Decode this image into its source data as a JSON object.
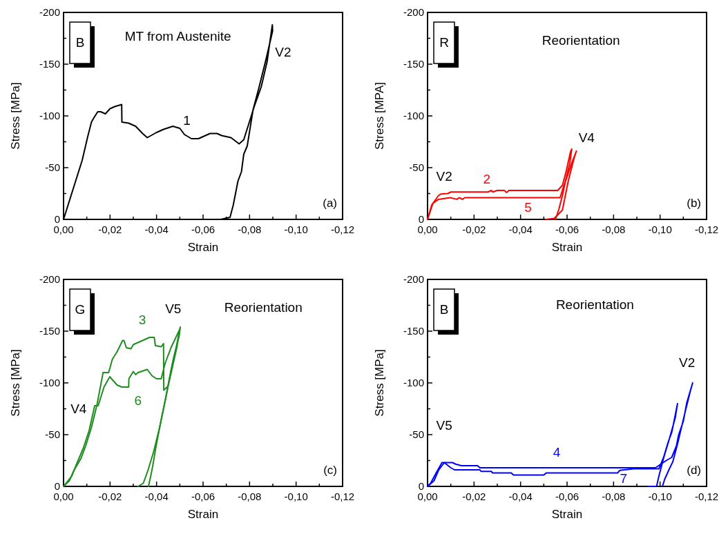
{
  "chart_data": [
    {
      "type": "line",
      "title": "MT from Austenite",
      "subtitle": "B",
      "xlabel": "Strain",
      "ylabel": "Stress [MPa]",
      "xlim": [
        0,
        -0.12
      ],
      "ylim": [
        0,
        -200
      ],
      "xticks": [
        {
          "value": 0,
          "label": "0,00"
        },
        {
          "value": -0.01,
          "label": null
        },
        {
          "value": -0.02,
          "label": "-0,02"
        },
        {
          "value": -0.03,
          "label": null
        },
        {
          "value": -0.04,
          "label": "-0,04"
        },
        {
          "value": -0.05,
          "label": null
        },
        {
          "value": -0.06,
          "label": "-0,06"
        },
        {
          "value": -0.07,
          "label": null
        },
        {
          "value": -0.08,
          "label": "-0,08"
        },
        {
          "value": -0.09,
          "label": null
        },
        {
          "value": -0.1,
          "label": "-0,10"
        },
        {
          "value": -0.11,
          "label": null
        },
        {
          "value": -0.12,
          "label": "-0,12"
        }
      ],
      "yticks": [
        0,
        {
          "value": -25,
          "label": null
        },
        -50,
        {
          "value": -75,
          "label": null
        },
        -100,
        {
          "value": -125,
          "label": null
        },
        -150,
        {
          "value": -175,
          "label": null
        },
        -200
      ],
      "series": [
        {
          "name": "1",
          "color": "#000000",
          "x": [
            0,
            -0.008,
            -0.0104,
            -0.012,
            -0.013,
            -0.0147,
            -0.016,
            -0.018,
            -0.02,
            -0.022,
            -0.025,
            -0.0251,
            -0.028,
            -0.031,
            -0.034,
            -0.036,
            -0.04,
            -0.043,
            -0.047,
            -0.05,
            -0.052,
            -0.055,
            -0.058,
            -0.06,
            -0.063,
            -0.066,
            -0.068,
            -0.072,
            -0.0755,
            -0.0775,
            -0.082,
            -0.085,
            -0.0875,
            -0.0898,
            -0.0899,
            -0.087,
            -0.084,
            -0.0815,
            -0.079,
            -0.0775,
            -0.0765,
            -0.075,
            -0.073,
            -0.0716,
            -0.0676
          ],
          "values": [
            0,
            -57,
            -80,
            -94,
            -98,
            -104,
            -104,
            -102,
            -107,
            -109,
            -111,
            -94,
            -93,
            -90,
            -83,
            -79,
            -84,
            -87,
            -90,
            -88,
            -82,
            -78,
            -78,
            -80,
            -83,
            -83,
            -81,
            -79,
            -73,
            -77,
            -109,
            -128,
            -152,
            -188,
            -182,
            -154,
            -127,
            -106,
            -71,
            -63,
            -46,
            -37,
            -14,
            -2,
            0
          ]
        }
      ],
      "annotations": [
        "V2",
        "(a)"
      ]
    },
    {
      "type": "line",
      "title": "Reorientation",
      "subtitle": "R",
      "xlabel": "Strain",
      "ylabel": "Stress [MPA]",
      "xlim": [
        0,
        -0.12
      ],
      "ylim": [
        0,
        -200
      ],
      "xticks": [
        {
          "value": 0,
          "label": "0,00"
        },
        {
          "value": -0.01,
          "label": null
        },
        {
          "value": -0.02,
          "label": "-0,02"
        },
        {
          "value": -0.03,
          "label": null
        },
        {
          "value": -0.04,
          "label": "-0,04"
        },
        {
          "value": -0.05,
          "label": null
        },
        {
          "value": -0.06,
          "label": "-0,06"
        },
        {
          "value": -0.07,
          "label": null
        },
        {
          "value": -0.08,
          "label": "-0,08"
        },
        {
          "value": -0.09,
          "label": null
        },
        {
          "value": -0.1,
          "label": "-0,10"
        },
        {
          "value": -0.11,
          "label": null
        },
        {
          "value": -0.12,
          "label": "-0,12"
        }
      ],
      "yticks": [
        0,
        {
          "value": -25,
          "label": null
        },
        -50,
        {
          "value": -75,
          "label": null
        },
        -100,
        {
          "value": -125,
          "label": null
        },
        -150,
        {
          "value": -175,
          "label": null
        },
        -200
      ],
      "series": [
        {
          "name": "2",
          "color": "#ff0000",
          "x": [
            0,
            -0.0018,
            -0.0047,
            -0.0057,
            -0.0087,
            -0.01,
            -0.026,
            -0.0275,
            -0.028,
            -0.03,
            -0.033,
            -0.034,
            -0.035,
            -0.056,
            -0.058,
            -0.0595,
            -0.0615,
            -0.062,
            -0.0612,
            -0.0595,
            -0.058,
            -0.0565,
            -0.055
          ],
          "values": [
            0,
            -14,
            -23,
            -24.5,
            -25,
            -26.5,
            -26.5,
            -28,
            -26.5,
            -28,
            -28,
            -26,
            -28,
            -28,
            -33,
            -45.5,
            -65.5,
            -68,
            -54.5,
            -39,
            -23,
            -10,
            0
          ]
        },
        {
          "name": "5",
          "color": "#ff0000",
          "x": [
            0,
            -0.0023,
            -0.0047,
            -0.0067,
            -0.0097,
            -0.0126,
            -0.0136,
            -0.015,
            -0.016,
            -0.057,
            -0.0585,
            -0.06,
            -0.062,
            -0.064,
            -0.063,
            -0.0605,
            -0.058,
            -0.0545,
            -0.051
          ],
          "values": [
            0,
            -15.5,
            -19.4,
            -20,
            -21,
            -19.4,
            -21,
            -19.4,
            -21,
            -21,
            -32,
            -41,
            -54.5,
            -66,
            -59,
            -37,
            -9,
            -1,
            0
          ]
        }
      ],
      "annotations": [
        "V2",
        "V4",
        "(b)"
      ]
    },
    {
      "type": "line",
      "title": "Reorientation",
      "subtitle": "G",
      "xlabel": "Strain",
      "ylabel": "Stress [MPa]",
      "xlim": [
        0,
        -0.12
      ],
      "ylim": [
        0,
        -200
      ],
      "xticks": [
        {
          "value": 0,
          "label": "0,00"
        },
        {
          "value": -0.01,
          "label": null
        },
        {
          "value": -0.02,
          "label": "-0,02"
        },
        {
          "value": -0.03,
          "label": null
        },
        {
          "value": -0.04,
          "label": "-0,04"
        },
        {
          "value": -0.05,
          "label": null
        },
        {
          "value": -0.06,
          "label": "-0,06"
        },
        {
          "value": -0.07,
          "label": null
        },
        {
          "value": -0.08,
          "label": "-0,08"
        },
        {
          "value": -0.09,
          "label": null
        },
        {
          "value": -0.1,
          "label": "-0,10"
        },
        {
          "value": -0.11,
          "label": null
        },
        {
          "value": -0.12,
          "label": "-0,12"
        }
      ],
      "yticks": [
        0,
        {
          "value": -25,
          "label": null
        },
        -50,
        {
          "value": -75,
          "label": null
        },
        -100,
        {
          "value": -125,
          "label": null
        },
        -150,
        {
          "value": -175,
          "label": null
        },
        -200
      ],
      "series": [
        {
          "name": "3",
          "color": "#1e8c1e",
          "x": [
            0,
            -0.0025,
            -0.0045,
            -0.0075,
            -0.0095,
            -0.012,
            -0.0144,
            -0.017,
            -0.0194,
            -0.021,
            -0.023,
            -0.0254,
            -0.026,
            -0.027,
            -0.029,
            -0.03,
            -0.033,
            -0.037,
            -0.039,
            -0.0395,
            -0.042,
            -0.043,
            -0.0431,
            -0.045,
            -0.0467,
            -0.0487,
            -0.0502,
            -0.0497,
            -0.0472,
            -0.0442,
            -0.0413,
            -0.0388,
            -0.0363,
            -0.0343,
            -0.032
          ],
          "values": [
            0,
            -5.5,
            -15.5,
            -27,
            -39,
            -57,
            -79,
            -110,
            -110,
            -123,
            -130,
            -141,
            -141,
            -134,
            -133,
            -137,
            -140,
            -144,
            -144,
            -136,
            -135,
            -138,
            -93,
            -97,
            -114,
            -134,
            -154,
            -145,
            -123,
            -88,
            -57,
            -34,
            -15.5,
            -3,
            0
          ]
        },
        {
          "name": "6",
          "color": "#1e8c1e",
          "x": [
            0,
            -0.0035,
            -0.0055,
            -0.0085,
            -0.011,
            -0.0134,
            -0.0149,
            -0.0174,
            -0.0199,
            -0.021,
            -0.023,
            -0.025,
            -0.028,
            -0.0281,
            -0.03,
            -0.031,
            -0.032,
            -0.036,
            -0.038,
            -0.04,
            -0.042,
            -0.0437,
            -0.0462,
            -0.05,
            -0.0487,
            -0.0462,
            -0.0437,
            -0.0417,
            -0.0398,
            -0.0383,
            -0.0373,
            -0.0365
          ],
          "values": [
            0,
            -10,
            -21,
            -37,
            -54,
            -78,
            -78,
            -96,
            -106,
            -103,
            -98,
            -96,
            -96,
            -104,
            -111,
            -108,
            -110,
            -113,
            -107,
            -104,
            -104,
            -119,
            -134,
            -152,
            -137,
            -112,
            -83,
            -61,
            -39,
            -19,
            -8,
            0
          ]
        }
      ],
      "annotations": [
        "V4",
        "V5",
        "(c)"
      ]
    },
    {
      "type": "line",
      "title": "Reorientation",
      "subtitle": "B",
      "xlabel": "Strain",
      "ylabel": "Stress [MPa]",
      "xlim": [
        0,
        -0.12
      ],
      "ylim": [
        0,
        -200
      ],
      "xticks": [
        {
          "value": 0,
          "label": "0,00"
        },
        {
          "value": -0.01,
          "label": null
        },
        {
          "value": -0.02,
          "label": "-0,02"
        },
        {
          "value": -0.03,
          "label": null
        },
        {
          "value": -0.04,
          "label": "-0,04"
        },
        {
          "value": -0.05,
          "label": null
        },
        {
          "value": -0.06,
          "label": "-0,06"
        },
        {
          "value": -0.07,
          "label": null
        },
        {
          "value": -0.08,
          "label": "-0,08"
        },
        {
          "value": -0.09,
          "label": null
        },
        {
          "value": -0.1,
          "label": "-0,10"
        },
        {
          "value": -0.11,
          "label": null
        },
        {
          "value": -0.12,
          "label": "-0,12"
        }
      ],
      "yticks": [
        0,
        {
          "value": -25,
          "label": null
        },
        -50,
        {
          "value": -75,
          "label": null
        },
        -100,
        {
          "value": -125,
          "label": null
        },
        -150,
        {
          "value": -175,
          "label": null
        },
        -200
      ],
      "series": [
        {
          "name": "4",
          "color": "#0000ff",
          "x": [
            0,
            -0.0013,
            -0.0037,
            -0.0062,
            -0.0067,
            -0.0107,
            -0.0121,
            -0.0146,
            -0.0215,
            -0.0225,
            -0.098,
            -0.1,
            -0.103,
            -0.105,
            -0.107,
            -0.108,
            -0.11,
            -0.1115,
            -0.114,
            -0.113,
            -0.111,
            -0.1075,
            -0.1055,
            -0.104,
            -0.102,
            -0.101
          ],
          "values": [
            0,
            -3,
            -13,
            -23,
            -23,
            -23,
            -21.5,
            -20,
            -20,
            -18,
            -18,
            -21,
            -25.5,
            -28,
            -39,
            -50,
            -63,
            -81,
            -100,
            -92,
            -74,
            -41,
            -24,
            -17,
            -7,
            0
          ]
        },
        {
          "name": "7",
          "color": "#0000ff",
          "x": [
            0,
            -0.0028,
            -0.0047,
            -0.0072,
            -0.01,
            -0.0116,
            -0.0225,
            -0.023,
            -0.0274,
            -0.028,
            -0.036,
            -0.037,
            -0.05,
            -0.051,
            -0.0817,
            -0.0827,
            -0.0886,
            -0.0995,
            -0.1015,
            -0.1035,
            -0.105,
            -0.106,
            -0.1075,
            -0.1065,
            -0.104,
            -0.1016,
            -0.0995,
            -0.0985,
            -0.095
          ],
          "values": [
            0,
            -5.5,
            -15.5,
            -23,
            -18,
            -16,
            -16,
            -14.5,
            -14.5,
            -13,
            -13,
            -11,
            -11,
            -13,
            -13,
            -15.5,
            -17,
            -17,
            -28,
            -43,
            -52,
            -63,
            -80,
            -66,
            -46,
            -28,
            -10,
            0,
            0
          ]
        }
      ],
      "annotations": [
        "V5",
        "V2",
        "(d)"
      ]
    }
  ]
}
